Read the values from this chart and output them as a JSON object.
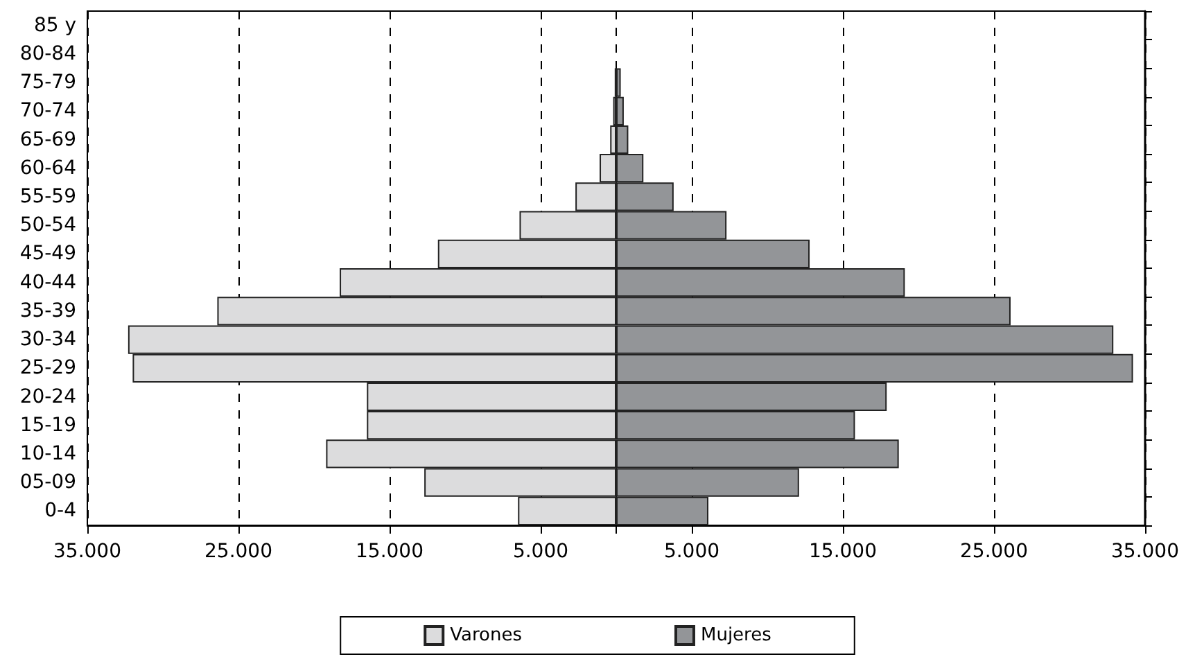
{
  "chart_data": {
    "type": "bar",
    "orientation": "horizontal",
    "categories": [
      "85 y",
      "80-84",
      "75-79",
      "70-74",
      "65-69",
      "60-64",
      "55-59",
      "50-54",
      "45-49",
      "40-44",
      "35-39",
      "30-34",
      "25-29",
      "20-24",
      "15-19",
      "10-14",
      "05-09",
      "0-4"
    ],
    "series": [
      {
        "name": "Varones",
        "color": "#dcdcdd",
        "values": [
          0,
          0,
          -100,
          -200,
          -400,
          -1100,
          -2700,
          -6400,
          -11800,
          -18300,
          -26400,
          -32300,
          -32000,
          -16500,
          -16500,
          -19200,
          -12700,
          -6500
        ]
      },
      {
        "name": "Mujeres",
        "color": "#939598",
        "values": [
          0,
          0,
          300,
          500,
          800,
          1800,
          3800,
          7300,
          12800,
          19100,
          26100,
          32900,
          34200,
          17900,
          15800,
          18700,
          12100,
          6100
        ]
      }
    ],
    "xlim": [
      -35000,
      35000
    ],
    "xticks": [
      {
        "value": -35000,
        "label": "35.000"
      },
      {
        "value": -25000,
        "label": "25.000"
      },
      {
        "value": -15000,
        "label": "15.000"
      },
      {
        "value": -5000,
        "label": "5.000"
      },
      {
        "value": 0,
        "label": null
      },
      {
        "value": 5000,
        "label": "5.000"
      },
      {
        "value": 15000,
        "label": "15.000"
      },
      {
        "value": 25000,
        "label": "25.000"
      },
      {
        "value": 35000,
        "label": "35.000"
      }
    ],
    "stacked": true,
    "grid": "x",
    "legend": "bottom"
  }
}
